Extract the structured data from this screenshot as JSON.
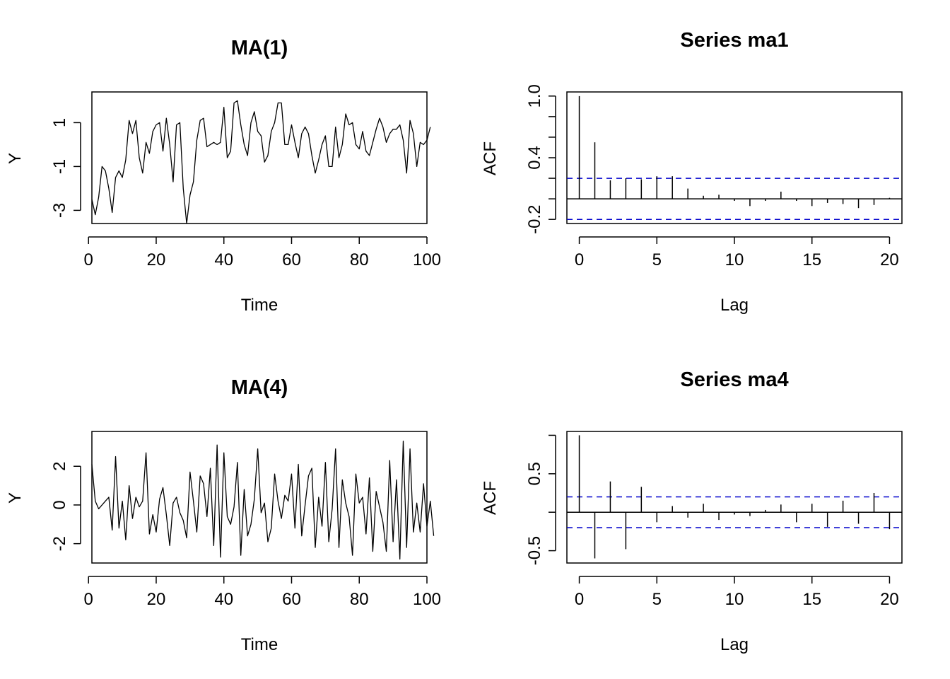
{
  "figure": {
    "background": "#ffffff",
    "line_color": "#000000",
    "ci_color": "#0000cc"
  },
  "chart_data": [
    {
      "id": "ma1",
      "type": "line",
      "title": "MA(1)",
      "xlabel": "Time",
      "ylabel": "Y",
      "xlim": [
        1,
        100
      ],
      "ylim": [
        -3.6,
        2.4
      ],
      "xticks": [
        0,
        20,
        40,
        60,
        80,
        100
      ],
      "yticks": [
        -3,
        -1,
        1
      ],
      "series": [
        {
          "values": [
            -2.5,
            -3.2,
            -2.4,
            -1.0,
            -1.2,
            -2.0,
            -3.1,
            -1.5,
            -1.2,
            -1.5,
            -0.7,
            1.1,
            0.5,
            1.1,
            -0.6,
            -1.3,
            0.1,
            -0.4,
            0.6,
            0.9,
            1.0,
            -0.3,
            1.2,
            0.0,
            -1.7,
            0.9,
            1.0,
            -2.0,
            -3.6,
            -2.3,
            -1.7,
            0.2,
            1.1,
            1.2,
            -0.1,
            0.0,
            0.1,
            0.0,
            0.1,
            1.7,
            -0.6,
            -0.3,
            1.9,
            2.0,
            0.9,
            0.0,
            -0.5,
            1.0,
            1.5,
            0.6,
            0.4,
            -0.8,
            -0.5,
            0.6,
            1.0,
            1.9,
            1.9,
            0.0,
            0.0,
            0.9,
            0.1,
            -0.6,
            0.5,
            0.8,
            0.5,
            -0.5,
            -1.3,
            -0.7,
            0.0,
            0.4,
            -1.0,
            -1.0,
            0.8,
            -0.6,
            0.0,
            1.4,
            0.9,
            1.0,
            0.0,
            -0.2,
            0.6,
            -0.3,
            -0.5,
            0.1,
            0.7,
            1.2,
            0.8,
            0.1,
            0.5,
            0.7,
            0.7,
            0.9,
            0.2,
            -1.3,
            1.1,
            0.5,
            -1.0,
            0.1,
            0.0,
            0.2,
            0.8
          ]
        }
      ]
    },
    {
      "id": "acf1",
      "type": "bar",
      "title": "Series  ma1",
      "xlabel": "Lag",
      "ylabel": "ACF",
      "xlim": [
        -0.8,
        20.8
      ],
      "ylim": [
        -0.24,
        1.04
      ],
      "xticks": [
        0,
        5,
        10,
        15,
        20
      ],
      "ytick_positions": [
        -0.2,
        0.0,
        0.2,
        0.4,
        0.6,
        0.8,
        1.0
      ],
      "ytick_labels": [
        "-0.2",
        "",
        "",
        "0.4",
        "",
        "",
        "1.0"
      ],
      "ci": [
        0.2,
        -0.2
      ],
      "lags": [
        0,
        1,
        2,
        3,
        4,
        5,
        6,
        7,
        8,
        9,
        10,
        11,
        12,
        13,
        14,
        15,
        16,
        17,
        18,
        19,
        20
      ],
      "values": [
        1.0,
        0.55,
        0.18,
        0.2,
        0.19,
        0.22,
        0.22,
        0.1,
        0.03,
        0.04,
        -0.02,
        -0.07,
        -0.02,
        0.07,
        -0.02,
        -0.07,
        -0.04,
        -0.05,
        -0.09,
        -0.06,
        0.01
      ]
    },
    {
      "id": "ma4",
      "type": "line",
      "title": "MA(4)",
      "xlabel": "Time",
      "ylabel": "Y",
      "xlim": [
        1,
        100
      ],
      "ylim": [
        -3.0,
        3.8
      ],
      "xticks": [
        0,
        20,
        40,
        60,
        80,
        100
      ],
      "yticks": [
        -2,
        0,
        2
      ],
      "series": [
        {
          "values": [
            2.1,
            0.2,
            -0.2,
            0.0,
            0.2,
            0.4,
            -1.3,
            2.5,
            -1.2,
            0.2,
            -1.8,
            1.0,
            -0.7,
            0.4,
            -0.1,
            0.2,
            2.7,
            -1.5,
            -0.5,
            -1.4,
            0.3,
            0.9,
            -0.5,
            -2.1,
            0.1,
            0.4,
            -0.4,
            -0.8,
            -1.7,
            1.7,
            0.2,
            -1.4,
            1.5,
            1.1,
            -0.6,
            1.9,
            -2.1,
            3.1,
            -2.7,
            2.7,
            -0.6,
            -1.0,
            -0.1,
            2.2,
            -2.6,
            0.8,
            -1.6,
            -1.0,
            0.3,
            2.9,
            -0.4,
            0.1,
            -1.9,
            -1.2,
            1.6,
            0.2,
            -0.7,
            0.5,
            0.2,
            1.6,
            -1.2,
            2.1,
            -1.6,
            0.0,
            1.5,
            1.9,
            -2.2,
            0.4,
            -1.1,
            2.2,
            -1.9,
            -0.2,
            2.9,
            -2.2,
            1.3,
            0.1,
            -0.6,
            -2.6,
            1.6,
            0.1,
            0.4,
            -1.5,
            1.4,
            -2.4,
            0.7,
            -0.1,
            -0.9,
            -2.4,
            2.3,
            -1.9,
            1.3,
            -2.8,
            3.3,
            -2.2,
            2.9,
            -1.4,
            0.1,
            -1.4,
            1.1,
            -1.1,
            0.2,
            -1.6
          ]
        }
      ]
    },
    {
      "id": "acf4",
      "type": "bar",
      "title": "Series  ma4",
      "xlabel": "Lag",
      "ylabel": "ACF",
      "xlim": [
        -0.8,
        20.8
      ],
      "ylim": [
        -0.66,
        1.05
      ],
      "xticks": [
        0,
        5,
        10,
        15,
        20
      ],
      "ytick_positions": [
        -0.5,
        0.0,
        0.5,
        1.0
      ],
      "ytick_labels": [
        "-0.5",
        "",
        "0.5",
        ""
      ],
      "ci": [
        0.2,
        -0.2
      ],
      "lags": [
        0,
        1,
        2,
        3,
        4,
        5,
        6,
        7,
        8,
        9,
        10,
        11,
        12,
        13,
        14,
        15,
        16,
        17,
        18,
        19,
        20
      ],
      "values": [
        1.0,
        -0.6,
        0.4,
        -0.48,
        0.33,
        -0.13,
        0.08,
        -0.07,
        0.11,
        -0.1,
        -0.03,
        -0.05,
        0.03,
        0.1,
        -0.13,
        0.11,
        -0.19,
        0.15,
        -0.15,
        0.25,
        -0.22
      ]
    }
  ]
}
